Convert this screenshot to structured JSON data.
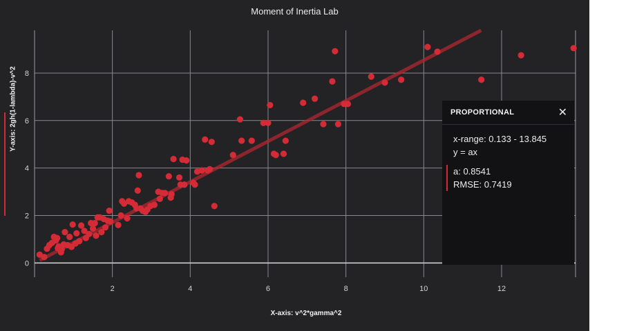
{
  "chart_data": {
    "type": "scatter",
    "title": "Moment of Inertia Lab",
    "xlabel": "X-axis: v^2*gamma^2",
    "ylabel": "Y-axis: 2gh(1-lambda)-v^2",
    "xlim": [
      0,
      13.9
    ],
    "ylim": [
      -0.6,
      9.8
    ],
    "xticks": [
      2,
      4,
      6,
      8,
      10,
      12
    ],
    "yticks": [
      0,
      2,
      4,
      6,
      8
    ],
    "grid": true,
    "series": [
      {
        "color": "#d42b36",
        "points": [
          [
            0.13,
            0.35
          ],
          [
            0.25,
            0.25
          ],
          [
            0.32,
            0.6
          ],
          [
            0.38,
            0.75
          ],
          [
            0.45,
            0.85
          ],
          [
            0.5,
            1.1
          ],
          [
            0.55,
            0.95
          ],
          [
            0.58,
            1.05
          ],
          [
            0.6,
            0.62
          ],
          [
            0.62,
            0.7
          ],
          [
            0.68,
            0.45
          ],
          [
            0.7,
            0.58
          ],
          [
            0.75,
            0.78
          ],
          [
            0.78,
            1.3
          ],
          [
            0.85,
            0.75
          ],
          [
            0.9,
            1.1
          ],
          [
            0.95,
            0.68
          ],
          [
            0.98,
            1.62
          ],
          [
            1.05,
            0.82
          ],
          [
            1.08,
            1.25
          ],
          [
            1.15,
            0.92
          ],
          [
            1.2,
            1.58
          ],
          [
            1.28,
            1.35
          ],
          [
            1.32,
            1.05
          ],
          [
            1.4,
            1.22
          ],
          [
            1.45,
            1.68
          ],
          [
            1.5,
            1.45
          ],
          [
            1.55,
            1.68
          ],
          [
            1.58,
            1.15
          ],
          [
            1.62,
            1.92
          ],
          [
            1.68,
            1.92
          ],
          [
            1.72,
            1.3
          ],
          [
            1.78,
            1.85
          ],
          [
            1.82,
            1.5
          ],
          [
            1.88,
            1.78
          ],
          [
            1.92,
            2.2
          ],
          [
            1.95,
            1.75
          ],
          [
            2.15,
            1.6
          ],
          [
            2.22,
            2.0
          ],
          [
            2.25,
            2.6
          ],
          [
            2.3,
            2.5
          ],
          [
            2.38,
            1.88
          ],
          [
            2.42,
            2.6
          ],
          [
            2.5,
            2.55
          ],
          [
            2.58,
            2.45
          ],
          [
            2.62,
            2.3
          ],
          [
            2.65,
            3.05
          ],
          [
            2.68,
            3.7
          ],
          [
            2.72,
            2.3
          ],
          [
            2.78,
            2.2
          ],
          [
            2.85,
            2.15
          ],
          [
            2.9,
            2.25
          ],
          [
            2.98,
            2.4
          ],
          [
            3.08,
            2.45
          ],
          [
            3.18,
            3.0
          ],
          [
            3.22,
            2.7
          ],
          [
            3.28,
            2.95
          ],
          [
            3.35,
            2.95
          ],
          [
            3.45,
            3.65
          ],
          [
            3.5,
            2.75
          ],
          [
            3.52,
            2.9
          ],
          [
            3.57,
            4.38
          ],
          [
            3.72,
            3.6
          ],
          [
            3.75,
            3.3
          ],
          [
            3.8,
            4.35
          ],
          [
            3.85,
            3.3
          ],
          [
            3.9,
            4.32
          ],
          [
            4.08,
            3.38
          ],
          [
            4.12,
            3.3
          ],
          [
            4.18,
            3.85
          ],
          [
            4.3,
            3.9
          ],
          [
            4.38,
            5.2
          ],
          [
            4.45,
            3.9
          ],
          [
            4.5,
            3.95
          ],
          [
            4.55,
            5.1
          ],
          [
            4.62,
            2.4
          ],
          [
            5.1,
            4.55
          ],
          [
            5.28,
            6.05
          ],
          [
            5.32,
            5.15
          ],
          [
            5.58,
            5.15
          ],
          [
            5.88,
            5.9
          ],
          [
            6.0,
            5.9
          ],
          [
            6.05,
            6.65
          ],
          [
            6.15,
            4.6
          ],
          [
            6.2,
            4.55
          ],
          [
            6.4,
            4.6
          ],
          [
            6.45,
            5.15
          ],
          [
            6.9,
            6.75
          ],
          [
            7.2,
            6.92
          ],
          [
            7.42,
            5.85
          ],
          [
            7.65,
            7.65
          ],
          [
            7.72,
            8.92
          ],
          [
            7.8,
            5.85
          ],
          [
            7.95,
            6.7
          ],
          [
            8.05,
            6.7
          ],
          [
            8.65,
            7.85
          ],
          [
            9.0,
            7.6
          ],
          [
            9.42,
            7.72
          ],
          [
            10.1,
            9.1
          ],
          [
            10.35,
            8.9
          ],
          [
            11.48,
            7.72
          ],
          [
            12.5,
            8.75
          ],
          [
            13.85,
            9.05
          ]
        ]
      }
    ],
    "fit_line": {
      "color": "#b0272f",
      "slope": 0.8541,
      "x_start": 0.133,
      "x_end": 13.845
    }
  },
  "fit_panel": {
    "title": "PROPORTIONAL",
    "close_glyph": "✕",
    "range": "x-range: 0.133 - 13.845",
    "model": "y = ax",
    "param_a": "a: 0.8541",
    "rmse": "RMSE: 0.7419"
  }
}
